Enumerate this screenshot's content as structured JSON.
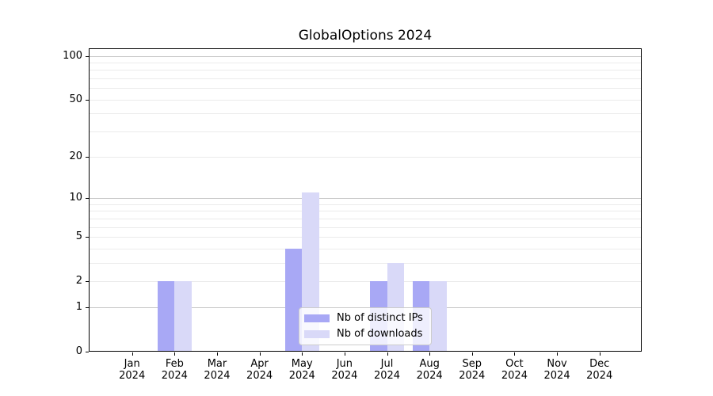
{
  "title": "GlobalOptions 2024",
  "colors": {
    "distinct_ips": "#a8a8f5",
    "downloads": "#d9d9f8",
    "grid_major": "#c6c6c6",
    "grid_minor": "#ebebeb",
    "axis": "#000000",
    "legend_border": "#cccccc"
  },
  "legend": {
    "items": [
      {
        "label": "Nb of distinct IPs"
      },
      {
        "label": "Nb of downloads"
      }
    ]
  },
  "chart_data": {
    "type": "bar",
    "title": "GlobalOptions 2024",
    "categories": [
      "Jan 2024",
      "Feb 2024",
      "Mar 2024",
      "Apr 2024",
      "May 2024",
      "Jun 2024",
      "Jul 2024",
      "Aug 2024",
      "Sep 2024",
      "Oct 2024",
      "Nov 2024",
      "Dec 2024"
    ],
    "x_tick_line1": [
      "Jan",
      "Feb",
      "Mar",
      "Apr",
      "May",
      "Jun",
      "Jul",
      "Aug",
      "Sep",
      "Oct",
      "Nov",
      "Dec"
    ],
    "x_tick_line2": [
      "2024",
      "2024",
      "2024",
      "2024",
      "2024",
      "2024",
      "2024",
      "2024",
      "2024",
      "2024",
      "2024",
      "2024"
    ],
    "series": [
      {
        "name": "Nb of distinct IPs",
        "color": "#a8a8f5",
        "values": [
          0,
          2,
          0,
          0,
          4,
          0,
          2,
          2,
          0,
          0,
          0,
          0
        ]
      },
      {
        "name": "Nb of downloads",
        "color": "#d9d9f8",
        "values": [
          0,
          2,
          0,
          0,
          11,
          0,
          3,
          2,
          0,
          0,
          0,
          0
        ]
      }
    ],
    "xlabel": "",
    "ylabel": "",
    "y_scale": "log1p",
    "y_tick_values": [
      0,
      1,
      2,
      5,
      10,
      20,
      50,
      100
    ],
    "y_gridlines_major": [
      1,
      10,
      100
    ],
    "y_gridlines_minor": [
      2,
      3,
      4,
      5,
      6,
      7,
      8,
      9,
      20,
      30,
      40,
      50,
      60,
      70,
      80,
      90
    ],
    "ylim": [
      0,
      112.6
    ],
    "grid": true,
    "legend_position": "lower center"
  }
}
